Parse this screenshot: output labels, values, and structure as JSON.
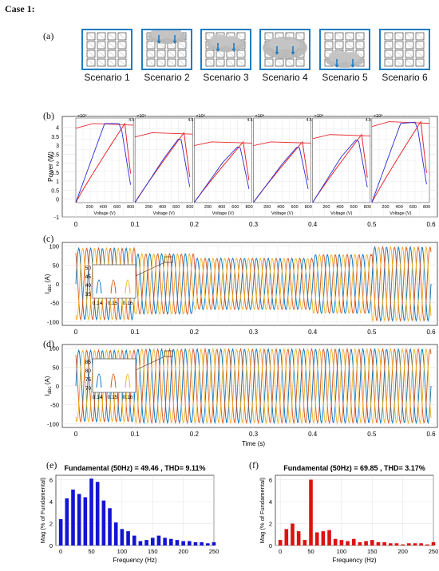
{
  "case_title": "Case 1:",
  "panel_labels": {
    "a": "(a)",
    "b": "(b)",
    "c": "(c)",
    "d": "(d)",
    "e": "(e)",
    "f": "(f)"
  },
  "scenarios": [
    "Scenario 1",
    "Scenario 2",
    "Scenario 3",
    "Scenario 4",
    "Scenario 5",
    "Scenario 6"
  ],
  "chart_b": {
    "ylabel": "Power (W)",
    "yticks": [
      "-1",
      "0",
      "0.5",
      "1",
      "1.5",
      "2",
      "2.5",
      "3",
      "3.5",
      "4"
    ],
    "xticks": [
      "0",
      "0.1",
      "0.2",
      "0.3",
      "0.4",
      "0.5",
      "0.6"
    ],
    "inset_xlabel": "Voltage (V)",
    "inset_xticks": [
      "200",
      "400",
      "600",
      "800"
    ],
    "inset_exponent": "×10⁴",
    "inset_top_tick": "4.5"
  },
  "chart_c": {
    "ylabel": "I",
    "ylabel_sub": "abc",
    "ylabel_unit": " (A)",
    "yticks": [
      "-100",
      "-50",
      "0",
      "50",
      "100"
    ],
    "xticks": [
      "0",
      "0.1",
      "0.2",
      "0.3",
      "0.4",
      "0.5",
      "0.6"
    ],
    "zoom_yticks": [
      "50",
      "45",
      "40",
      "35"
    ],
    "zoom_xticks": [
      "0.14",
      "0.15",
      "0.16"
    ]
  },
  "chart_d": {
    "ylabel": "I",
    "ylabel_sub": "abc",
    "ylabel_unit": " (A)",
    "xlabel": "Time (s)",
    "yticks": [
      "-100",
      "-50",
      "0",
      "50",
      "100"
    ],
    "xticks": [
      "0",
      "0.1",
      "0.2",
      "0.3",
      "0.4",
      "0.5",
      "0.6"
    ],
    "zoom_yticks": [
      "85",
      "80",
      "75",
      "70"
    ],
    "zoom_xticks": [
      "0.14",
      "0.15",
      "0.16"
    ]
  },
  "chart_data": [
    {
      "type": "bar",
      "title": "Fundamental (50Hz) = 49.46 , THD= 9.11%",
      "xlabel": "Frequency (Hz)",
      "ylabel": "Mag (% of Fundamental)",
      "color": "#1414d6",
      "x": [
        0,
        10,
        20,
        30,
        40,
        50,
        60,
        70,
        80,
        90,
        100,
        110,
        120,
        130,
        140,
        150,
        160,
        170,
        180,
        190,
        200,
        210,
        220,
        230,
        240,
        250
      ],
      "values": [
        2.4,
        4.3,
        5.1,
        4.7,
        4.4,
        6.1,
        5.8,
        4.1,
        3.4,
        2.1,
        1.5,
        1.3,
        0.9,
        0.4,
        0.5,
        0.7,
        0.9,
        0.7,
        0.6,
        0.5,
        0.4,
        0.4,
        0.3,
        0.3,
        0.2,
        0.3
      ],
      "xticks": [
        "0",
        "50",
        "100",
        "150",
        "200",
        "250"
      ],
      "yticks": [
        "0",
        "2",
        "4",
        "6"
      ],
      "xlim": [
        -8,
        250
      ],
      "ylim": [
        0,
        6.4
      ],
      "grid": true
    },
    {
      "type": "bar",
      "title": "Fundamental (50Hz) = 69.85 , THD= 3.17%",
      "xlabel": "Frequency (Hz)",
      "ylabel": "Mag (% of Fundamental)",
      "color": "#dd1111",
      "x": [
        0,
        10,
        20,
        30,
        40,
        50,
        60,
        70,
        80,
        90,
        100,
        110,
        120,
        130,
        140,
        150,
        160,
        170,
        180,
        190,
        200,
        210,
        220,
        230,
        240,
        250
      ],
      "values": [
        0.5,
        1.5,
        2.0,
        1.3,
        0.5,
        6.0,
        1.2,
        1.3,
        1.4,
        0.6,
        0.5,
        0.4,
        0.6,
        0.3,
        0.4,
        0.5,
        0.3,
        0.3,
        0.2,
        0.2,
        0.1,
        0.2,
        0.2,
        0.2,
        0.1,
        0.3
      ],
      "xticks": [
        "0",
        "50",
        "100",
        "150",
        "200",
        "250"
      ],
      "yticks": [
        "0",
        "2",
        "4",
        "6"
      ],
      "xlim": [
        -8,
        250
      ],
      "ylim": [
        0,
        6.4
      ],
      "grid": true
    }
  ],
  "colors": {
    "blue": "#0072bd",
    "orange": "#d95319",
    "yellow": "#edb120",
    "red_curve": "#e8282e",
    "blue_curve": "#2b2bd6",
    "frame": "#1f7cc2"
  }
}
